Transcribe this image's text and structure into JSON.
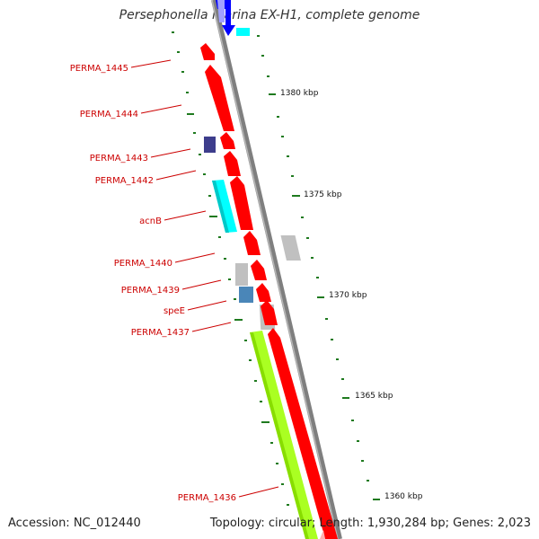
{
  "title": "Persephonella marina EX-H1, complete genome",
  "footer": {
    "accession": "Accession: NC_012440",
    "summary": "Topology: circular; Length: 1,930,284 bp; Genes: 2,023"
  },
  "colors": {
    "backbone": "#7f7f7f",
    "cds": "#ff0000",
    "label": "#cc0000",
    "tick": "#1f7a1f",
    "cyan": "#00ffff",
    "navy": "#3d3d8c",
    "grey": "#c0c0c0",
    "steelblue": "#4a86b8",
    "lime": "#aaff22",
    "blue": "#0000ff"
  },
  "ticks": [
    {
      "label": "1380 kbp"
    },
    {
      "label": "1375 kbp"
    },
    {
      "label": "1370 kbp"
    },
    {
      "label": "1365 kbp"
    },
    {
      "label": "1360 kbp"
    }
  ],
  "features": [
    {
      "label": "PERMA_1445"
    },
    {
      "label": "PERMA_1444"
    },
    {
      "label": "PERMA_1443"
    },
    {
      "label": "PERMA_1442"
    },
    {
      "label": "acnB"
    },
    {
      "label": "PERMA_1440"
    },
    {
      "label": "PERMA_1439"
    },
    {
      "label": "speE"
    },
    {
      "label": "PERMA_1437"
    },
    {
      "label": "PERMA_1436"
    }
  ]
}
